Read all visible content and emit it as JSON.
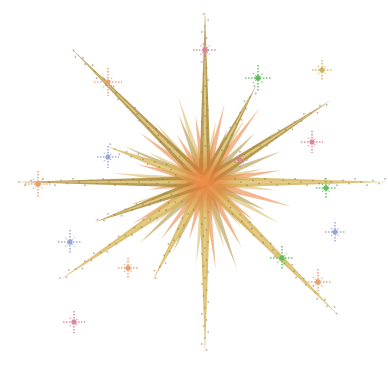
{
  "image": {
    "subject": "starburst-sparkle-clipart",
    "background_color": "#ffffff",
    "palette": {
      "ray_gold": "#d4b35c",
      "ray_light": "#e6cc86",
      "ray_dark": "#a8893c",
      "core_orange": "#e87a3a",
      "core_red": "#c94a2a",
      "twinkle_blue": "#9aa6d8",
      "twinkle_green": "#5fbf5a",
      "twinkle_rose": "#d9869a",
      "twinkle_peach": "#e7a06e"
    }
  }
}
